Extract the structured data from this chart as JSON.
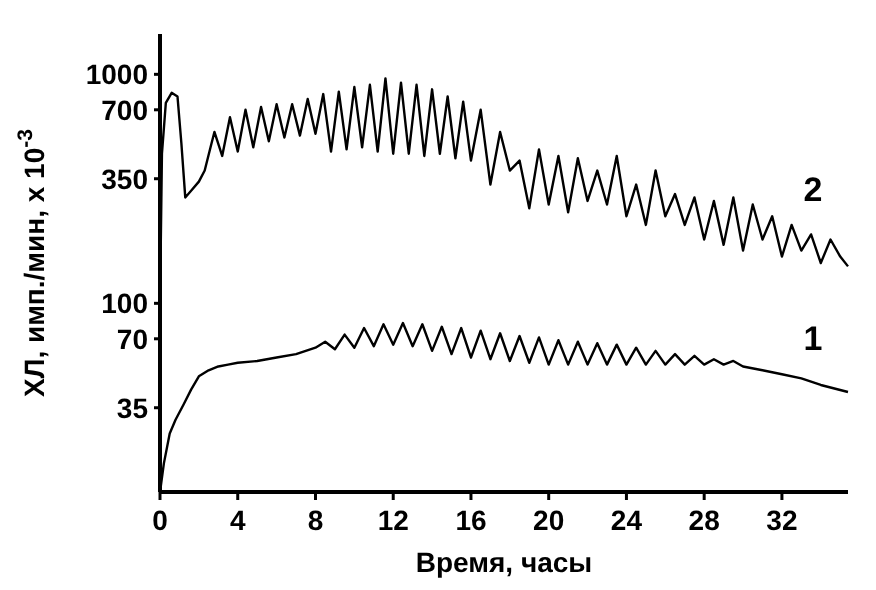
{
  "chart_data": {
    "type": "line",
    "xlabel": "Время, часы",
    "ylabel": "ХЛ, имп./мин,  x 10$^{-3}$",
    "log": "y",
    "xlim": [
      0,
      35.4
    ],
    "ylim": [
      15,
      1500
    ],
    "xticks": [
      0,
      4,
      8,
      12,
      16,
      20,
      24,
      28,
      32
    ],
    "yticks": [
      35,
      70,
      100,
      350,
      700,
      1000
    ],
    "grid": false,
    "marker": "none",
    "line_style": "solid",
    "series": [
      {
        "name": "2",
        "color": "#000000",
        "x": [
          0,
          0.1,
          0.3,
          0.6,
          0.9,
          1.1,
          1.3,
          1.6,
          2,
          2.3,
          2.6,
          2.8,
          3.2,
          3.6,
          4.0,
          4.4,
          4.8,
          5.2,
          5.6,
          6.0,
          6.4,
          6.8,
          7.2,
          7.6,
          8.0,
          8.4,
          8.8,
          9.2,
          9.6,
          10.0,
          10.4,
          10.8,
          11.2,
          11.6,
          12.0,
          12.4,
          12.8,
          13.2,
          13.6,
          14.0,
          14.4,
          14.8,
          15.2,
          15.6,
          16.0,
          16.5,
          17,
          17.5,
          18,
          18.5,
          19,
          19.5,
          20,
          20.5,
          21,
          21.5,
          22,
          22.5,
          23,
          23.5,
          24,
          24.5,
          25,
          25.5,
          26,
          26.5,
          27,
          27.5,
          28,
          28.5,
          29,
          29.5,
          30,
          30.5,
          31,
          31.5,
          32,
          32.5,
          33,
          33.5,
          34,
          34.5,
          35,
          35.4
        ],
        "values": [
          100,
          450,
          750,
          830,
          800,
          500,
          290,
          310,
          340,
          380,
          480,
          560,
          440,
          650,
          460,
          700,
          480,
          720,
          510,
          740,
          530,
          740,
          540,
          780,
          550,
          820,
          460,
          840,
          470,
          880,
          480,
          900,
          460,
          960,
          450,
          920,
          450,
          900,
          440,
          860,
          450,
          800,
          430,
          760,
          420,
          700,
          330,
          560,
          380,
          420,
          260,
          470,
          270,
          440,
          250,
          430,
          280,
          380,
          270,
          440,
          240,
          330,
          220,
          380,
          240,
          300,
          220,
          290,
          190,
          280,
          180,
          290,
          170,
          270,
          190,
          240,
          160,
          220,
          170,
          200,
          150,
          190,
          160,
          145
        ]
      },
      {
        "name": "1",
        "color": "#000000",
        "x": [
          0,
          0.2,
          0.5,
          0.8,
          1.2,
          1.6,
          2,
          2.5,
          3,
          3.5,
          4,
          5,
          6,
          7,
          8,
          8.5,
          9,
          9.5,
          10,
          10.5,
          11,
          11.5,
          12,
          12.5,
          13,
          13.5,
          14,
          14.5,
          15,
          15.5,
          16,
          16.5,
          17,
          17.5,
          18,
          18.5,
          19,
          19.5,
          20,
          20.5,
          21,
          21.5,
          22,
          22.5,
          23,
          23.5,
          24,
          24.5,
          25,
          25.5,
          26,
          26.5,
          27,
          27.5,
          28,
          28.5,
          29,
          29.5,
          30,
          31,
          32,
          33,
          34,
          35.4
        ],
        "values": [
          15,
          20,
          27,
          31,
          36,
          42,
          48,
          51,
          53,
          54,
          55,
          56,
          58,
          60,
          64,
          68,
          63,
          73,
          64,
          78,
          65,
          81,
          66,
          82,
          65,
          81,
          62,
          79,
          60,
          78,
          58,
          76,
          57,
          74,
          56,
          72,
          55,
          71,
          54,
          69,
          54,
          68,
          54,
          67,
          54,
          66,
          54,
          64,
          54,
          62,
          54,
          60,
          54,
          59,
          54,
          57,
          54,
          56,
          53,
          51,
          49,
          47,
          44,
          41
        ]
      }
    ]
  }
}
